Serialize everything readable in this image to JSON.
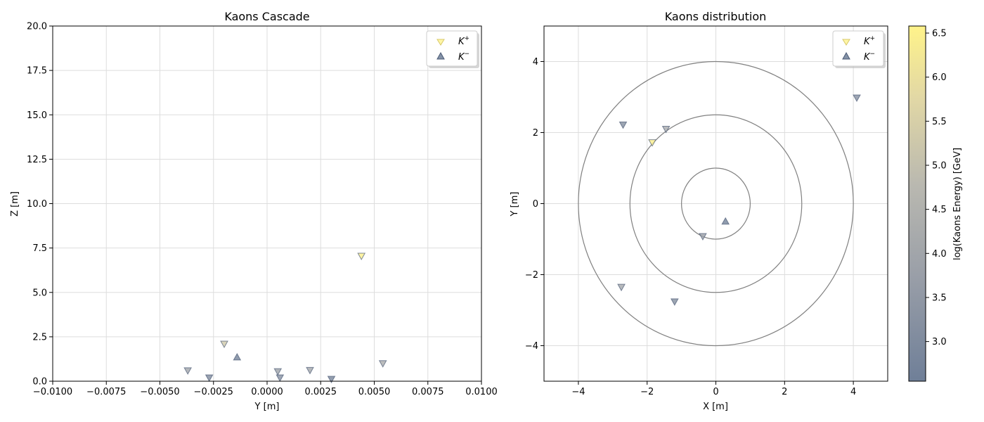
{
  "chart_data": [
    {
      "type": "scatter",
      "title": "Kaons Cascade",
      "xlabel": "Y [m]",
      "ylabel": "Z [m]",
      "xlim": [
        -0.01,
        0.01
      ],
      "ylim": [
        0,
        20
      ],
      "xticks": [
        "−0.0100",
        "−0.0075",
        "−0.0050",
        "−0.0025",
        "0.0000",
        "0.0025",
        "0.0050",
        "0.0075",
        "0.0100"
      ],
      "xtick_values": [
        -0.01,
        -0.0075,
        -0.005,
        -0.0025,
        0,
        0.0025,
        0.005,
        0.0075,
        0.01
      ],
      "yticks": [
        "0.0",
        "2.5",
        "5.0",
        "7.5",
        "10.0",
        "12.5",
        "15.0",
        "17.5",
        "20.0"
      ],
      "ytick_values": [
        0,
        2.5,
        5,
        7.5,
        10,
        12.5,
        15,
        17.5,
        20
      ],
      "grid": true,
      "legend": {
        "placement": "top-right",
        "entries": [
          "K+",
          "K−"
        ]
      },
      "series": [
        {
          "name": "K+",
          "marker": "triangle-down",
          "points": [
            {
              "x": 0.0044,
              "y": 7.05,
              "log_energy": 6.5
            },
            {
              "x": -0.002,
              "y": 2.1,
              "log_energy": 5.3
            },
            {
              "x": -0.0037,
              "y": 0.6,
              "log_energy": 4.0
            },
            {
              "x": -0.0027,
              "y": 0.2,
              "log_energy": 3.0
            },
            {
              "x": 0.0005,
              "y": 0.55,
              "log_energy": 3.9
            },
            {
              "x": 0.0006,
              "y": 0.2,
              "log_energy": 3.2
            },
            {
              "x": 0.002,
              "y": 0.62,
              "log_energy": 4.1
            },
            {
              "x": 0.003,
              "y": 0.12,
              "log_energy": 2.8
            },
            {
              "x": 0.0054,
              "y": 1.0,
              "log_energy": 4.3
            }
          ]
        },
        {
          "name": "K−",
          "marker": "triangle-up",
          "points": [
            {
              "x": -0.0014,
              "y": 1.35,
              "log_energy": 2.7
            }
          ]
        }
      ]
    },
    {
      "type": "scatter",
      "title": "Kaons distribution",
      "xlabel": "X [m]",
      "ylabel": "Y [m]",
      "xlim": [
        -5,
        5
      ],
      "ylim": [
        -5,
        5
      ],
      "xticks": [
        "−4",
        "−2",
        "0",
        "2",
        "4"
      ],
      "xtick_values": [
        -4,
        -2,
        0,
        2,
        4
      ],
      "yticks": [
        "−4",
        "−2",
        "0",
        "2",
        "4"
      ],
      "ytick_values": [
        -4,
        -2,
        0,
        2,
        4
      ],
      "grid": true,
      "circles": [
        1,
        2.5,
        4
      ],
      "legend": {
        "placement": "top-right",
        "entries": [
          "K+",
          "K−"
        ]
      },
      "series": [
        {
          "name": "K+",
          "marker": "triangle-down",
          "points": [
            {
              "x": -1.85,
              "y": 1.72,
              "log_energy": 6.5
            },
            {
              "x": -2.7,
              "y": 2.22,
              "log_energy": 3.1
            },
            {
              "x": -1.45,
              "y": 2.1,
              "log_energy": 4.2
            },
            {
              "x": 4.1,
              "y": 2.98,
              "log_energy": 3.2
            },
            {
              "x": -0.38,
              "y": -0.92,
              "log_energy": 3.8
            },
            {
              "x": -2.75,
              "y": -2.35,
              "log_energy": 4.1
            },
            {
              "x": -1.2,
              "y": -2.76,
              "log_energy": 3.1
            }
          ]
        },
        {
          "name": "K−",
          "marker": "triangle-up",
          "points": [
            {
              "x": 0.28,
              "y": -0.5,
              "log_energy": 2.7
            }
          ]
        }
      ]
    }
  ],
  "colorbar": {
    "label": "log(Kaons Energy) [GeV]",
    "range": [
      2.55,
      6.58
    ],
    "ticks": [
      "3.0",
      "3.5",
      "4.0",
      "4.5",
      "5.0",
      "5.5",
      "6.0",
      "6.5"
    ],
    "tick_values": [
      3.0,
      3.5,
      4.0,
      4.5,
      5.0,
      5.5,
      6.0,
      6.5
    ],
    "colormap": "cividis",
    "low_color": "#7a8aa3",
    "high_color": "#fff38a"
  },
  "legend_labels": {
    "kplus_base": "K",
    "kplus_sup": "+",
    "kminus_base": "K",
    "kminus_sup": "−"
  },
  "colors": {
    "grid": "#dddddd",
    "circle": "#808080",
    "marker_edge": "#4a5a75"
  }
}
